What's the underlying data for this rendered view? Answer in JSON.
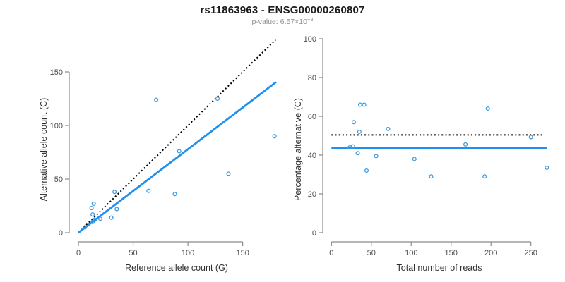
{
  "header": {
    "title": "rs11863963 - ENSG00000260807",
    "pvalue_label": "p-value: ",
    "pvalue_mantissa": "6.57",
    "pvalue_times": "×10",
    "pvalue_exponent": "−8"
  },
  "colors": {
    "background": "#ffffff",
    "title": "#1a1a1a",
    "subtitle": "#8f8f8f",
    "axis": "#8a8a8a",
    "tick_label": "#4d4d4d",
    "axis_title": "#303030",
    "point": "#3d9ae1",
    "fit_line": "#1e90f0",
    "identity_line": "#000000"
  },
  "chart_data": [
    {
      "type": "scatter",
      "name": "allele-counts",
      "xlabel": "Reference allele count (G)",
      "ylabel": "Alternative allele count (C)",
      "xticks": [
        0,
        50,
        100,
        150
      ],
      "yticks": [
        0,
        50,
        100,
        150
      ],
      "xlim": [
        0,
        180
      ],
      "ylim": [
        0,
        180
      ],
      "grid": false,
      "legend": "none",
      "points": [
        [
          6,
          5
        ],
        [
          13,
          10
        ],
        [
          15,
          12
        ],
        [
          20,
          13
        ],
        [
          30,
          14
        ],
        [
          13,
          17
        ],
        [
          35,
          22
        ],
        [
          12,
          23
        ],
        [
          14,
          27
        ],
        [
          33,
          38
        ],
        [
          64,
          39
        ],
        [
          88,
          36
        ],
        [
          92,
          76
        ],
        [
          71,
          124
        ],
        [
          127,
          125
        ],
        [
          137,
          55
        ],
        [
          179,
          90
        ]
      ],
      "lines": [
        {
          "name": "identity",
          "style": "dotted",
          "color": "#000000",
          "x1": 0,
          "y1": 0,
          "x2": 180,
          "y2": 180
        },
        {
          "name": "fit",
          "style": "solid",
          "color": "#1e90f0",
          "x1": 0,
          "y1": 0,
          "x2": 180.5,
          "y2": 140.5
        }
      ]
    },
    {
      "type": "scatter",
      "name": "percentage-vs-reads",
      "xlabel": "Total number of reads",
      "ylabel": "Percentage alternative (C)",
      "xticks": [
        0,
        50,
        100,
        150,
        200,
        250
      ],
      "yticks": [
        0,
        20,
        40,
        60,
        80,
        100
      ],
      "xlim": [
        0,
        272
      ],
      "ylim": [
        0,
        100
      ],
      "grid": false,
      "legend": "none",
      "points": [
        [
          23,
          44
        ],
        [
          27,
          44.5
        ],
        [
          28,
          57
        ],
        [
          33,
          41
        ],
        [
          35,
          52
        ],
        [
          36,
          66
        ],
        [
          41,
          66
        ],
        [
          44,
          32
        ],
        [
          56,
          39.5
        ],
        [
          71,
          53.5
        ],
        [
          104,
          38
        ],
        [
          125,
          29
        ],
        [
          168,
          45.5
        ],
        [
          192,
          29
        ],
        [
          196,
          64
        ],
        [
          250,
          49.3
        ],
        [
          270,
          33.5
        ]
      ],
      "lines": [
        {
          "name": "null-50pct",
          "style": "dotted",
          "color": "#000000",
          "x1": 0,
          "y1": 50.4,
          "x2": 264,
          "y2": 50.4
        },
        {
          "name": "mean-percentage",
          "style": "solid",
          "color": "#1e90f0",
          "x1": 0,
          "y1": 43.7,
          "x2": 270.5,
          "y2": 43.7
        }
      ]
    }
  ]
}
